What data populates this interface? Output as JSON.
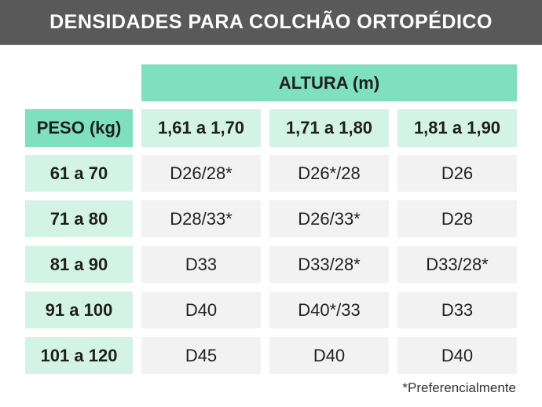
{
  "title": "DENSIDADES PARA COLCHÃO ORTOPÉDICO",
  "table": {
    "column_group_header": "ALTURA (m)",
    "row_header_label": "PESO (kg)",
    "columns": [
      "1,61 a 1,70",
      "1,71 a 1,80",
      "1,81 a 1,90"
    ],
    "rows": [
      {
        "label": "61 a 70",
        "values": [
          "D26/28*",
          "D26*/28",
          "D26"
        ]
      },
      {
        "label": "71 a 80",
        "values": [
          "D28/33*",
          "D26/33*",
          "D28"
        ]
      },
      {
        "label": "81 a 90",
        "values": [
          "D33",
          "D33/28*",
          "D33/28*"
        ]
      },
      {
        "label": "91 a 100",
        "values": [
          "D40",
          "D40*/33",
          "D33"
        ]
      },
      {
        "label": "101 a 120",
        "values": [
          "D45",
          "D40",
          "D40"
        ]
      }
    ]
  },
  "footnote": "*Preferencialmente",
  "colors": {
    "banner": "#595959",
    "header_accent": "#7fe0bf",
    "header_light": "#d3f3e6",
    "cell_background": "#f2f2f2"
  }
}
